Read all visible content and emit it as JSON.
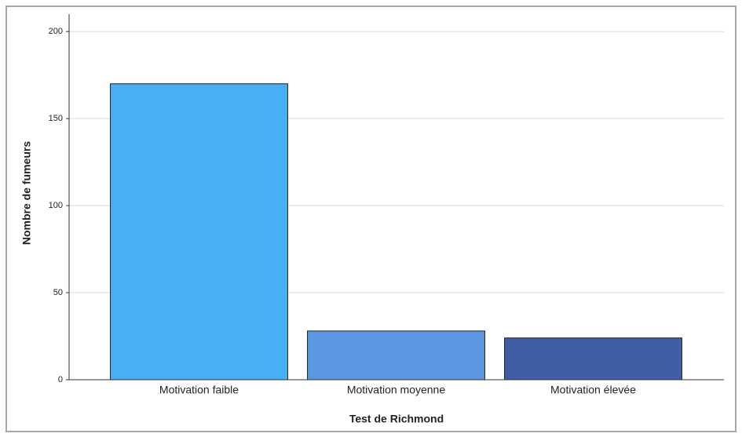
{
  "chart_data": {
    "type": "bar",
    "categories": [
      "Motivation faible",
      "Motivation moyenne",
      "Motivation élevée"
    ],
    "values": [
      170,
      28,
      24
    ],
    "colors": [
      "#4aaef5",
      "#5b97e0",
      "#3f5ea6"
    ],
    "x_label": "Test de Richmond",
    "y_label": "Nombre de fumeurs",
    "ylim": [
      0,
      210
    ],
    "yticks": [
      0,
      50,
      100,
      150,
      200
    ],
    "grid": true
  }
}
